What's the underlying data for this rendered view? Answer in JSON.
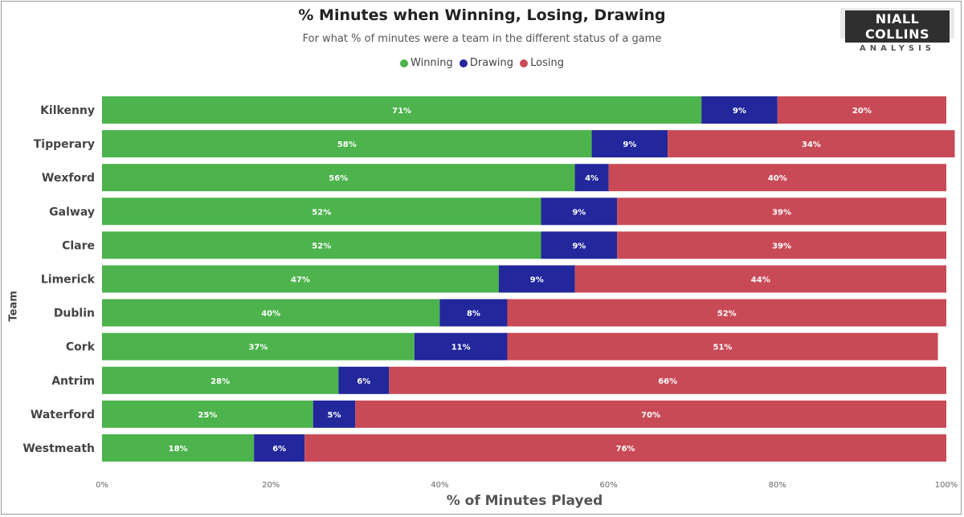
{
  "chart_data": {
    "type": "bar",
    "orientation": "horizontal",
    "stacked": true,
    "title": "% Minutes when Winning, Losing, Drawing",
    "subtitle": "For what % of minutes were a team in the different status of a game",
    "xlabel": "% of Minutes Played",
    "ylabel": "Team",
    "xlim": [
      0,
      100
    ],
    "xticks": [
      "0%",
      "20%",
      "40%",
      "60%",
      "80%",
      "100%"
    ],
    "legend_position": "top-center",
    "categories": [
      "Kilkenny",
      "Tipperary",
      "Wexford",
      "Galway",
      "Clare",
      "Limerick",
      "Dublin",
      "Cork",
      "Antrim",
      "Waterford",
      "Westmeath"
    ],
    "series": [
      {
        "name": "Winning",
        "color": "#4db34d",
        "values": [
          71,
          58,
          56,
          52,
          52,
          47,
          40,
          37,
          28,
          25,
          18
        ],
        "labels": [
          "71%",
          "58%",
          "56%",
          "52%",
          "52%",
          "47%",
          "40%",
          "37%",
          "28%",
          "25%",
          "18%"
        ]
      },
      {
        "name": "Drawing",
        "color": "#22279b",
        "values": [
          9,
          9,
          4,
          9,
          9,
          9,
          8,
          11,
          6,
          5,
          6
        ],
        "labels": [
          "9%",
          "9%",
          "4%",
          "9%",
          "9%",
          "9%",
          "8%",
          "11%",
          "6%",
          "5%",
          "6%"
        ]
      },
      {
        "name": "Losing",
        "color": "#c94a57",
        "values": [
          20,
          34,
          40,
          39,
          39,
          44,
          52,
          51,
          66,
          70,
          76
        ],
        "labels": [
          "20%",
          "34%",
          "40%",
          "39%",
          "39%",
          "44%",
          "52%",
          "51%",
          "66%",
          "70%",
          "76%"
        ]
      }
    ]
  },
  "logo": {
    "main": "NIALL COLLINS",
    "sub": "ANALYSIS"
  }
}
